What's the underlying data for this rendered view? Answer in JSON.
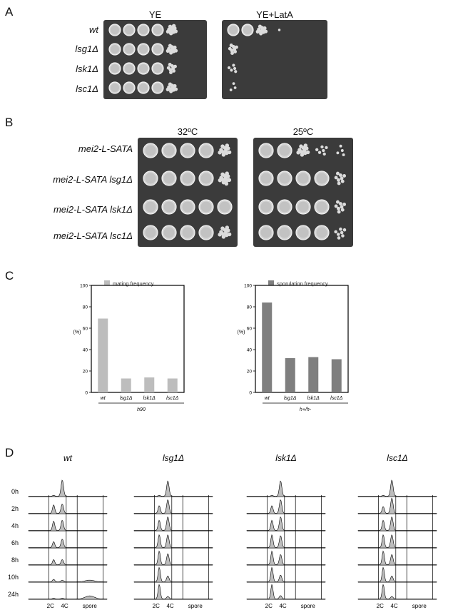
{
  "panel_a": {
    "letter": "A",
    "columns": [
      "YE",
      "YE+LatA"
    ],
    "rows": [
      "wt",
      "lsg1Δ",
      "lsk1Δ",
      "lsc1Δ"
    ]
  },
  "panel_b": {
    "letter": "B",
    "columns": [
      "32ºC",
      "25ºC"
    ],
    "rows": [
      "mei2-L-SATA",
      "mei2-L-SATA lsg1Δ",
      "mei2-L-SATA lsk1Δ",
      "mei2-L-SATA lsc1Δ"
    ]
  },
  "panel_c": {
    "letter": "C"
  },
  "chart_data": [
    {
      "type": "bar",
      "legend": "mating frequency",
      "categories": [
        "wt",
        "lsg1Δ",
        "lsk1Δ",
        "lsc1Δ"
      ],
      "values": [
        69,
        13,
        14,
        13
      ],
      "ylabel": "(%)",
      "group_label": "h90",
      "ylim": [
        0,
        100
      ],
      "yticks": [
        "0",
        "20",
        "40",
        "60",
        "80",
        "100"
      ],
      "color": "#bdbdbd"
    },
    {
      "type": "bar",
      "legend": "sporulation frequency",
      "categories": [
        "wt",
        "lsg1Δ",
        "lsk1Δ",
        "lsc1Δ"
      ],
      "values": [
        84,
        32,
        33,
        31
      ],
      "ylabel": "(%)",
      "group_label": "h+/h-",
      "ylim": [
        0,
        100
      ],
      "yticks": [
        "0",
        "20",
        "40",
        "60",
        "80",
        "100"
      ],
      "color": "#7f7f7f"
    }
  ],
  "panel_d": {
    "letter": "D",
    "strains": [
      "wt",
      "lsg1Δ",
      "lsk1Δ",
      "lsc1Δ"
    ],
    "timepoints": [
      "0h",
      "2h",
      "4h",
      "6h",
      "8h",
      "10h",
      "24h"
    ],
    "x_labels": [
      "2C",
      "4C",
      "spore"
    ]
  }
}
